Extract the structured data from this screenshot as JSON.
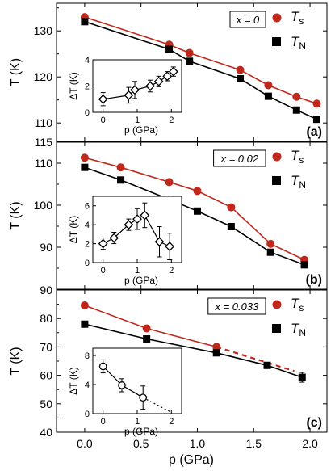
{
  "figure": {
    "x_axis_label": "p (GPa)",
    "x_ticks": [
      "0.0",
      "0.5",
      "1.0",
      "1.5",
      "2.0"
    ]
  },
  "colors": {
    "ts": "#c0281c",
    "tn": "#000000",
    "inset": "#000000"
  },
  "chart_data": [
    {
      "type": "line",
      "panel_label": "(a)",
      "box_label": "x = 0",
      "ylabel": "T (K)",
      "xlim": [
        -0.25,
        2.15
      ],
      "ylim": [
        106,
        136
      ],
      "yticks": [
        110,
        120,
        130
      ],
      "legend": [
        "Ts",
        "TN"
      ],
      "series": [
        {
          "name": "Ts",
          "x": [
            0.0,
            0.75,
            0.93,
            1.38,
            1.63,
            1.88,
            2.06
          ],
          "y": [
            133,
            127,
            125.2,
            121.5,
            118.2,
            115.7,
            114.2
          ]
        },
        {
          "name": "TN",
          "x": [
            0.0,
            0.75,
            0.93,
            1.38,
            1.63,
            1.88,
            2.06
          ],
          "y": [
            132,
            126,
            123.4,
            119.6,
            115.8,
            112.8,
            110.8
          ]
        }
      ],
      "inset": {
        "xlabel": "p (GPa)",
        "ylabel": "ΔT (K)",
        "xticks": [
          0,
          1,
          2
        ],
        "yticks": [
          0,
          2,
          4
        ],
        "xlim": [
          -0.3,
          2.3
        ],
        "ylim": [
          0,
          4
        ],
        "x": [
          0.0,
          0.75,
          0.93,
          1.38,
          1.63,
          1.88,
          2.06
        ],
        "y": [
          1.0,
          1.3,
          1.7,
          2.0,
          2.35,
          2.75,
          3.1
        ],
        "err": [
          0.5,
          0.6,
          0.65,
          0.45,
          0.4,
          0.35,
          0.35
        ]
      }
    },
    {
      "type": "line",
      "panel_label": "(b)",
      "box_label": "x = 0.02",
      "ylabel": "T (K)",
      "xlim": [
        -0.25,
        2.15
      ],
      "ylim": [
        80,
        115
      ],
      "yticks": [
        90,
        100,
        110
      ],
      "legend": [
        "Ts",
        "TN"
      ],
      "series": [
        {
          "name": "Ts",
          "x": [
            0.0,
            0.32,
            0.75,
            1.0,
            1.3,
            1.65,
            1.95
          ],
          "y": [
            111.3,
            109,
            105.5,
            103.4,
            99.5,
            90.8,
            87
          ]
        },
        {
          "name": "TN",
          "x": [
            0.0,
            0.32,
            0.75,
            1.0,
            1.3,
            1.65,
            1.95
          ],
          "y": [
            109,
            106,
            101.4,
            98.6,
            94.9,
            88.8,
            85.8
          ]
        }
      ],
      "inset": {
        "xlabel": "p (GPa)",
        "ylabel": "ΔT (K)",
        "xticks": [
          0,
          1,
          2
        ],
        "yticks": [
          0,
          2,
          4,
          6
        ],
        "xlim": [
          -0.3,
          2.3
        ],
        "ylim": [
          0,
          7
        ],
        "x": [
          0.0,
          0.32,
          0.75,
          1.0,
          1.22,
          1.65,
          1.95
        ],
        "y": [
          2.0,
          2.6,
          4.0,
          4.6,
          5.0,
          2.2,
          1.7
        ],
        "err": [
          0.6,
          0.6,
          0.6,
          1.1,
          1.3,
          1.6,
          1.4
        ]
      }
    },
    {
      "type": "line",
      "panel_label": "(c)",
      "box_label": "x = 0.033",
      "ylabel": "T (K)",
      "xlim": [
        -0.25,
        2.15
      ],
      "ylim": [
        40,
        90
      ],
      "yticks": [
        40,
        50,
        60,
        70,
        80
      ],
      "legend": [
        "Ts",
        "TN"
      ],
      "series": [
        {
          "name": "Ts",
          "x": [
            0.0,
            0.55,
            1.17
          ],
          "y": [
            84.6,
            76.5,
            70
          ],
          "err": [
            0,
            0,
            1.5
          ]
        },
        {
          "name": "TN",
          "x": [
            0.0,
            0.55,
            1.17,
            1.62,
            1.93
          ],
          "y": [
            78,
            72.8,
            67.9,
            63.5,
            59.3
          ],
          "err": [
            0,
            0,
            0,
            0,
            1.7
          ]
        }
      ],
      "inset": {
        "xlabel": "p (GPa)",
        "ylabel": "ΔT (K)",
        "xticks": [
          0,
          1,
          2
        ],
        "yticks": [
          0,
          4,
          8
        ],
        "xlim": [
          -0.3,
          2.3
        ],
        "ylim": [
          0,
          9
        ],
        "x": [
          0.0,
          0.55,
          1.17
        ],
        "y": [
          6.5,
          3.9,
          2.2
        ],
        "err": [
          0.9,
          0.9,
          1.6
        ]
      }
    }
  ]
}
